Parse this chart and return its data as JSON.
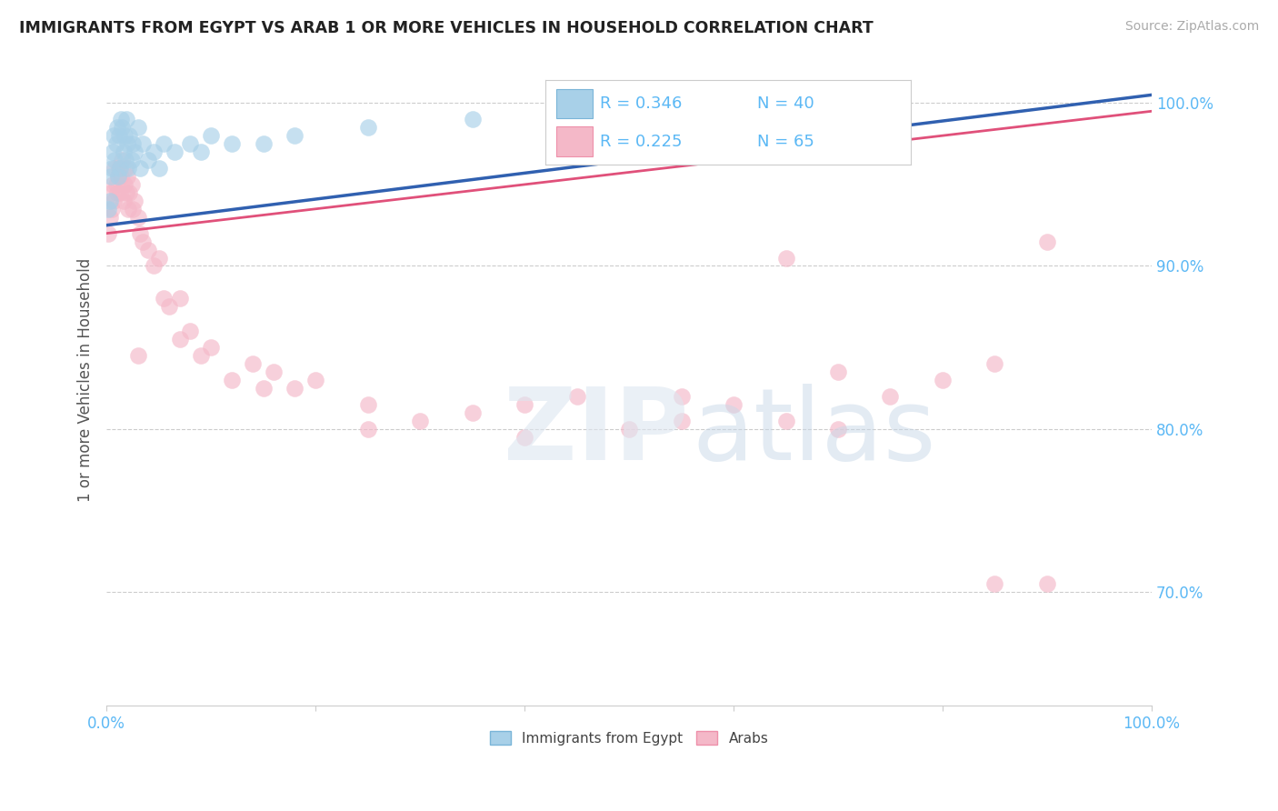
{
  "title": "IMMIGRANTS FROM EGYPT VS ARAB 1 OR MORE VEHICLES IN HOUSEHOLD CORRELATION CHART",
  "source": "Source: ZipAtlas.com",
  "ylabel": "1 or more Vehicles in Household",
  "xlim": [
    0.0,
    100.0
  ],
  "ylim": [
    63.0,
    103.0
  ],
  "yticks": [
    70.0,
    80.0,
    90.0,
    100.0
  ],
  "ytick_labels": [
    "70.0%",
    "80.0%",
    "90.0%",
    "100.0%"
  ],
  "legend_label1": "Immigrants from Egypt",
  "legend_label2": "Arabs",
  "R1": 0.346,
  "N1": 40,
  "R2": 0.225,
  "N2": 65,
  "color_egypt": "#a8d0e8",
  "color_arab": "#f4b8c8",
  "color_egypt_edge": "#7ab5d8",
  "color_arab_edge": "#ee90aa",
  "color_trendline_egypt": "#3060b0",
  "color_trendline_arab": "#e0507a",
  "background_color": "#ffffff",
  "tick_color": "#5bb8f5",
  "egypt_x": [
    0.2,
    0.3,
    0.4,
    0.5,
    0.6,
    0.7,
    0.8,
    0.9,
    1.0,
    1.1,
    1.2,
    1.3,
    1.4,
    1.5,
    1.6,
    1.7,
    1.8,
    1.9,
    2.0,
    2.1,
    2.2,
    2.4,
    2.5,
    2.7,
    3.0,
    3.2,
    3.5,
    4.0,
    4.5,
    5.0,
    5.5,
    6.5,
    8.0,
    9.0,
    10.0,
    12.0,
    15.0,
    18.0,
    25.0,
    35.0
  ],
  "egypt_y": [
    93.5,
    94.0,
    95.5,
    96.0,
    97.0,
    98.0,
    96.5,
    97.5,
    98.5,
    95.5,
    98.0,
    96.0,
    99.0,
    98.5,
    97.0,
    98.0,
    96.5,
    99.0,
    97.5,
    96.0,
    98.0,
    96.5,
    97.5,
    97.0,
    98.5,
    96.0,
    97.5,
    96.5,
    97.0,
    96.0,
    97.5,
    97.0,
    97.5,
    97.0,
    98.0,
    97.5,
    97.5,
    98.0,
    98.5,
    99.0
  ],
  "arab_x": [
    0.2,
    0.3,
    0.4,
    0.5,
    0.6,
    0.7,
    0.8,
    0.9,
    1.0,
    1.1,
    1.2,
    1.3,
    1.4,
    1.5,
    1.6,
    1.7,
    1.8,
    1.9,
    2.0,
    2.1,
    2.2,
    2.4,
    2.5,
    2.7,
    3.0,
    3.2,
    3.5,
    4.0,
    4.5,
    5.0,
    5.5,
    6.0,
    7.0,
    8.0,
    9.0,
    10.0,
    12.0,
    14.0,
    16.0,
    18.0,
    20.0,
    25.0,
    30.0,
    35.0,
    40.0,
    45.0,
    50.0,
    55.0,
    60.0,
    65.0,
    70.0,
    75.0,
    80.0,
    85.0,
    90.0,
    3.0,
    7.0,
    15.0,
    25.0,
    40.0,
    55.0,
    70.0,
    85.0,
    90.0,
    65.0
  ],
  "arab_y": [
    92.0,
    93.0,
    94.5,
    93.5,
    95.0,
    94.0,
    96.0,
    95.0,
    94.5,
    95.5,
    96.0,
    94.5,
    95.5,
    96.5,
    94.0,
    95.0,
    96.0,
    94.5,
    95.5,
    93.5,
    94.5,
    95.0,
    93.5,
    94.0,
    93.0,
    92.0,
    91.5,
    91.0,
    90.0,
    90.5,
    88.0,
    87.5,
    88.0,
    86.0,
    84.5,
    85.0,
    83.0,
    84.0,
    83.5,
    82.5,
    83.0,
    81.5,
    80.5,
    81.0,
    81.5,
    82.0,
    80.0,
    82.0,
    81.5,
    80.5,
    80.0,
    82.0,
    83.0,
    84.0,
    91.5,
    84.5,
    85.5,
    82.5,
    80.0,
    79.5,
    80.5,
    83.5,
    70.5,
    70.5,
    90.5
  ],
  "egypt_trendline_x0": 0.0,
  "egypt_trendline_y0": 92.5,
  "egypt_trendline_x1": 100.0,
  "egypt_trendline_y1": 100.5,
  "arab_trendline_x0": 0.0,
  "arab_trendline_y0": 92.0,
  "arab_trendline_x1": 100.0,
  "arab_trendline_y1": 99.5
}
